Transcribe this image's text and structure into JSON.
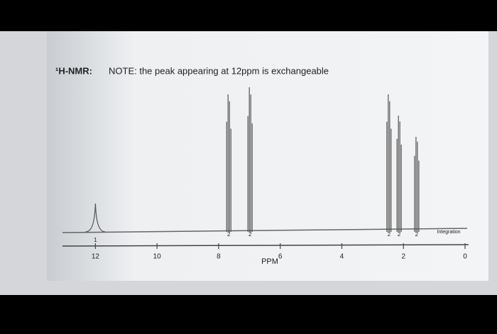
{
  "chart_data": {
    "type": "nmr",
    "title": "¹H-NMR:",
    "subtitle": "NOTE: the peak appearing at 12ppm is exchangeable",
    "x_label": "PPM",
    "integration_label": "Integration",
    "xlim": [
      13,
      0
    ],
    "xticks": [
      12,
      10,
      8,
      6,
      4,
      2,
      0
    ],
    "ylim": [
      0,
      220
    ],
    "color": "#555555",
    "peaks": {
      "ppm": [
        12,
        7.67,
        6.98,
        2.47,
        2.14,
        1.57
      ],
      "height": [
        40,
        194,
        204,
        194,
        164,
        134
      ],
      "integration": [
        1,
        2,
        2,
        2,
        2,
        2
      ]
    }
  }
}
